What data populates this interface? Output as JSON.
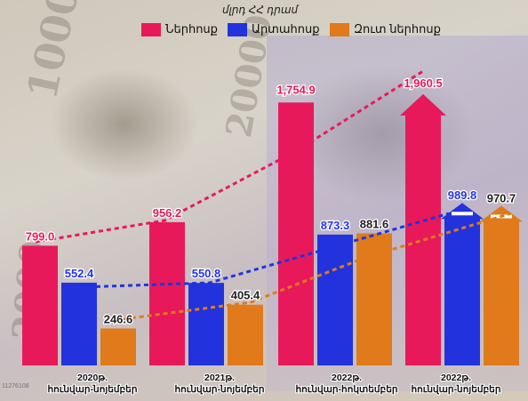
{
  "chart_data": {
    "type": "bar",
    "ylabel": "մլրդ ՀՀ դրամ",
    "categories": [
      [
        "2020թ.",
        "հունվար-նոյեմբեր"
      ],
      [
        "2021թ.",
        "հունվար-նոյեմբեր"
      ],
      [
        "2022թ.",
        "հունվար-հոկտեմբեր"
      ],
      [
        "2022թ.",
        "հունվար-նոյեմբեր"
      ]
    ],
    "series": [
      {
        "name": "Ներհոսք",
        "color": "#e8195a",
        "label_color": "#e8195a",
        "values": [
          799.0,
          956.2,
          1754.9,
          1960.5
        ]
      },
      {
        "name": "Արտահոսք",
        "color": "#2233dd",
        "label_color": "#2233ee",
        "values": [
          552.4,
          550.8,
          873.3,
          989.8
        ]
      },
      {
        "name": "Զուտ ներհոսք",
        "color": "#e07a1a",
        "label_color": "#222222",
        "values": [
          246.6,
          405.4,
          881.6,
          970.7
        ]
      }
    ],
    "value_labels": [
      [
        "799.0",
        "552.4",
        "246.6"
      ],
      [
        "956.2",
        "550.8",
        "405.4"
      ],
      [
        "1,754.9",
        "873.3",
        "881.6"
      ],
      [
        "1,960.5",
        "989.8",
        "970.7"
      ]
    ],
    "legend_position": "top",
    "trend_lines": true,
    "grid": false
  },
  "watermark": "11276108"
}
